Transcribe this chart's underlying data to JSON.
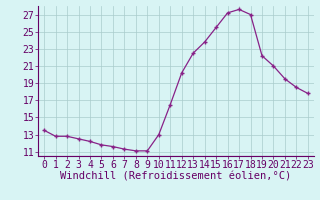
{
  "x_values": [
    0,
    1,
    2,
    3,
    4,
    5,
    6,
    7,
    8,
    9,
    10,
    11,
    12,
    13,
    14,
    15,
    16,
    17,
    18,
    19,
    20,
    21,
    22,
    23
  ],
  "y_values": [
    13.5,
    12.8,
    12.8,
    12.5,
    12.2,
    11.8,
    11.6,
    11.3,
    11.1,
    11.1,
    13.0,
    16.5,
    20.2,
    22.5,
    23.8,
    25.5,
    27.2,
    27.6,
    27.0,
    22.2,
    21.0,
    19.5,
    18.5,
    17.8
  ],
  "line_color": "#882288",
  "bg_color": "#d8f4f4",
  "grid_color": "#aacccc",
  "xlabel": "Windchill (Refroidissement éolien,°C)",
  "xlim": [
    -0.5,
    23.5
  ],
  "ylim": [
    10.5,
    28.0
  ],
  "yticks": [
    11,
    13,
    15,
    17,
    19,
    21,
    23,
    25,
    27
  ],
  "xticks": [
    0,
    1,
    2,
    3,
    4,
    5,
    6,
    7,
    8,
    9,
    10,
    11,
    12,
    13,
    14,
    15,
    16,
    17,
    18,
    19,
    20,
    21,
    22,
    23
  ],
  "xlabel_fontsize": 7.5,
  "tick_fontsize": 7,
  "label_color": "#660066"
}
